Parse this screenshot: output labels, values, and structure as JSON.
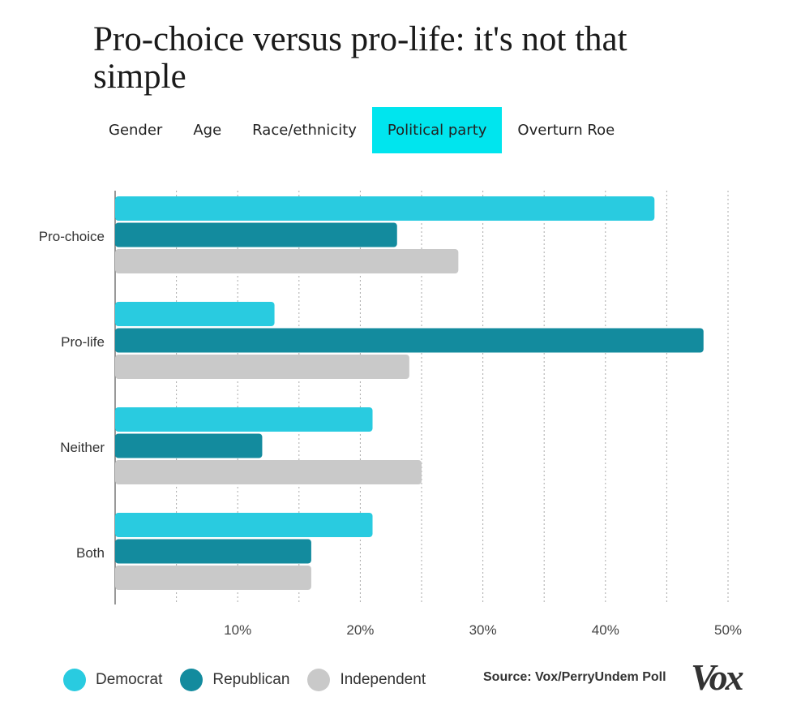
{
  "title": "Pro-choice versus pro-life: it's not that simple",
  "tabs": [
    {
      "label": "Gender",
      "active": false
    },
    {
      "label": "Age",
      "active": false
    },
    {
      "label": "Race/ethnicity",
      "active": false
    },
    {
      "label": "Political party",
      "active": true
    },
    {
      "label": "Overturn Roe",
      "active": false
    }
  ],
  "colors": {
    "democrat": "#29cbe0",
    "republican": "#138b9e",
    "independent": "#c9c9c9",
    "active_tab": "#00e5ee"
  },
  "chart_data": {
    "type": "bar",
    "orientation": "horizontal",
    "categories": [
      "Pro-choice",
      "Pro-life",
      "Neither",
      "Both"
    ],
    "series": [
      {
        "name": "Democrat",
        "color": "#29cbe0",
        "values": [
          44,
          13,
          21,
          21
        ]
      },
      {
        "name": "Republican",
        "color": "#138b9e",
        "values": [
          23,
          48,
          12,
          16
        ]
      },
      {
        "name": "Independent",
        "color": "#c9c9c9",
        "values": [
          28,
          24,
          25,
          16
        ]
      }
    ],
    "x_ticks": [
      "10%",
      "20%",
      "30%",
      "40%",
      "50%"
    ],
    "x_tick_values": [
      10,
      20,
      30,
      40,
      50
    ],
    "xlim": [
      0,
      50
    ],
    "grid": true,
    "legend_position": "bottom-left"
  },
  "legend": [
    {
      "label": "Democrat",
      "color": "#29cbe0"
    },
    {
      "label": "Republican",
      "color": "#138b9e"
    },
    {
      "label": "Independent",
      "color": "#c9c9c9"
    }
  ],
  "source": "Source: Vox/PerryUndem Poll",
  "logo_text": "Vox"
}
